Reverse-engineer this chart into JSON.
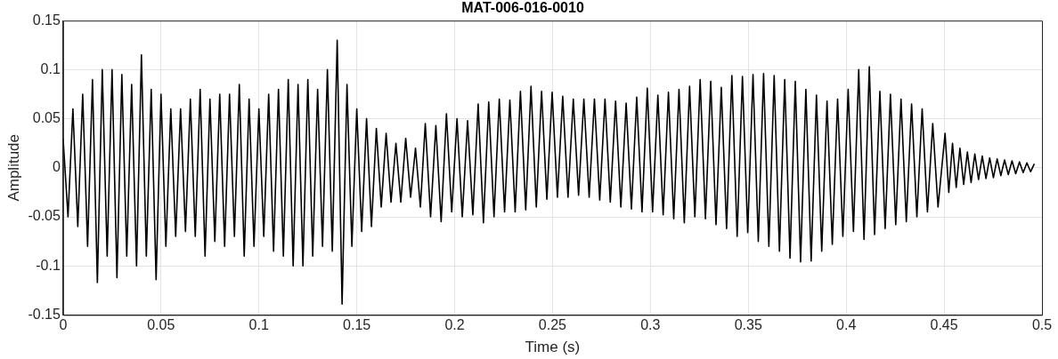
{
  "chart_data": {
    "type": "line",
    "title": "MAT-006-016-0010",
    "xlabel": "Time (s)",
    "ylabel": "Amplitude",
    "xlim": [
      0,
      0.5
    ],
    "xticks": [
      0,
      0.05,
      0.1,
      0.15,
      0.2,
      0.25,
      0.3,
      0.35,
      0.4,
      0.45,
      0.5
    ],
    "ylim": [
      -0.15,
      0.15
    ],
    "yticks": [
      -0.15,
      -0.1,
      -0.05,
      0,
      0.05,
      0.1,
      0.15
    ],
    "grid": true,
    "legend": false,
    "marker": "none",
    "line_style": "solid",
    "series": [
      {
        "color": "#000000",
        "x": [
          0,
          0.0025,
          0.005,
          0.0075,
          0.01,
          0.0125,
          0.015,
          0.0175,
          0.02,
          0.0225,
          0.025,
          0.0275,
          0.03,
          0.0325,
          0.035,
          0.0375,
          0.04,
          0.0425,
          0.045,
          0.0475,
          0.05,
          0.0525,
          0.055,
          0.0575,
          0.06,
          0.0625,
          0.065,
          0.0675,
          0.07,
          0.0725,
          0.075,
          0.0775,
          0.08,
          0.0825,
          0.085,
          0.0875,
          0.09,
          0.0925,
          0.095,
          0.0975,
          0.1,
          0.1025,
          0.105,
          0.1075,
          0.11,
          0.1125,
          0.115,
          0.1175,
          0.12,
          0.1225,
          0.125,
          0.1275,
          0.13,
          0.1325,
          0.135,
          0.1375,
          0.14,
          0.1425,
          0.145,
          0.1475,
          0.15,
          0.1525,
          0.155,
          0.1575,
          0.16,
          0.1625,
          0.165,
          0.1675,
          0.17,
          0.1725,
          0.175,
          0.1775,
          0.18,
          0.1825,
          0.185,
          0.1877,
          0.1904,
          0.1931,
          0.1958,
          0.1985,
          0.2012,
          0.2039,
          0.2066,
          0.2093,
          0.212,
          0.2147,
          0.2174,
          0.2201,
          0.2228,
          0.2255,
          0.2282,
          0.2309,
          0.2336,
          0.2363,
          0.239,
          0.2417,
          0.2444,
          0.2471,
          0.2498,
          0.2525,
          0.2552,
          0.2579,
          0.2606,
          0.2633,
          0.266,
          0.2687,
          0.2714,
          0.2741,
          0.2768,
          0.2795,
          0.2822,
          0.2849,
          0.2876,
          0.2903,
          0.293,
          0.2957,
          0.2984,
          0.3011,
          0.3038,
          0.3065,
          0.3092,
          0.3119,
          0.3146,
          0.3173,
          0.32,
          0.3227,
          0.3254,
          0.3281,
          0.3308,
          0.3335,
          0.3362,
          0.3389,
          0.3416,
          0.3443,
          0.347,
          0.3497,
          0.3524,
          0.3551,
          0.3578,
          0.3605,
          0.3632,
          0.3659,
          0.3686,
          0.3713,
          0.374,
          0.3767,
          0.3794,
          0.3821,
          0.3848,
          0.3875,
          0.3902,
          0.3929,
          0.3956,
          0.3983,
          0.401,
          0.4037,
          0.4064,
          0.4091,
          0.4118,
          0.4145,
          0.4172,
          0.4199,
          0.4226,
          0.4253,
          0.428,
          0.4307,
          0.4334,
          0.4361,
          0.4388,
          0.4415,
          0.4442,
          0.4469,
          0.4505,
          0.4524,
          0.4543,
          0.4562,
          0.4581,
          0.46,
          0.4619,
          0.4638,
          0.4657,
          0.4676,
          0.4695,
          0.4714,
          0.4733,
          0.4752,
          0.4771,
          0.479,
          0.4809,
          0.4828,
          0.4847,
          0.4866,
          0.4885,
          0.4904,
          0.4923,
          0.4942,
          0.4961
        ],
        "values": [
          0.03,
          -0.05,
          0.06,
          -0.06,
          0.075,
          -0.08,
          0.09,
          -0.117,
          0.1,
          -0.09,
          0.1,
          -0.112,
          0.095,
          -0.09,
          0.085,
          -0.1,
          0.115,
          -0.09,
          0.08,
          -0.114,
          0.075,
          -0.08,
          0.06,
          -0.07,
          0.06,
          -0.065,
          0.07,
          -0.07,
          0.08,
          -0.09,
          0.07,
          -0.075,
          0.075,
          -0.08,
          0.075,
          -0.07,
          0.085,
          -0.09,
          0.07,
          -0.08,
          0.06,
          -0.07,
          0.075,
          -0.085,
          0.08,
          -0.09,
          0.09,
          -0.1,
          0.085,
          -0.1,
          0.09,
          -0.09,
          0.08,
          -0.08,
          0.1,
          -0.085,
          0.13,
          -0.139,
          0.085,
          -0.08,
          0.06,
          -0.065,
          0.05,
          -0.06,
          0.04,
          -0.04,
          0.035,
          -0.035,
          0.025,
          -0.035,
          0.03,
          -0.03,
          0.02,
          -0.04,
          0.045,
          -0.05,
          0.043,
          -0.055,
          0.055,
          -0.045,
          0.05,
          -0.05,
          0.048,
          -0.048,
          0.065,
          -0.056,
          0.067,
          -0.05,
          0.07,
          -0.045,
          0.069,
          -0.045,
          0.078,
          -0.043,
          0.083,
          -0.04,
          0.078,
          -0.032,
          0.077,
          -0.03,
          0.073,
          -0.03,
          0.07,
          -0.028,
          0.07,
          -0.03,
          0.07,
          -0.033,
          0.07,
          -0.035,
          0.068,
          -0.04,
          0.066,
          -0.042,
          0.072,
          -0.045,
          0.081,
          -0.045,
          0.074,
          -0.048,
          0.077,
          -0.052,
          0.08,
          -0.056,
          0.083,
          -0.05,
          0.09,
          -0.052,
          0.088,
          -0.058,
          0.082,
          -0.062,
          0.094,
          -0.07,
          0.093,
          -0.066,
          0.095,
          -0.075,
          0.096,
          -0.08,
          0.094,
          -0.085,
          0.09,
          -0.092,
          0.088,
          -0.096,
          0.08,
          -0.095,
          0.074,
          -0.085,
          0.068,
          -0.078,
          0.07,
          -0.07,
          0.08,
          -0.065,
          0.1,
          -0.073,
          0.103,
          -0.068,
          0.078,
          -0.062,
          0.075,
          -0.058,
          0.07,
          -0.055,
          0.065,
          -0.05,
          0.06,
          -0.045,
          0.045,
          -0.04,
          0.035,
          -0.025,
          0.025,
          -0.02,
          0.02,
          -0.017,
          0.016,
          -0.015,
          0.014,
          -0.012,
          0.012,
          -0.011,
          0.01,
          -0.01,
          0.009,
          -0.008,
          0.008,
          -0.007,
          0.007,
          -0.006,
          0.006,
          -0.005,
          0.005,
          -0.004,
          0.004
        ]
      }
    ]
  }
}
